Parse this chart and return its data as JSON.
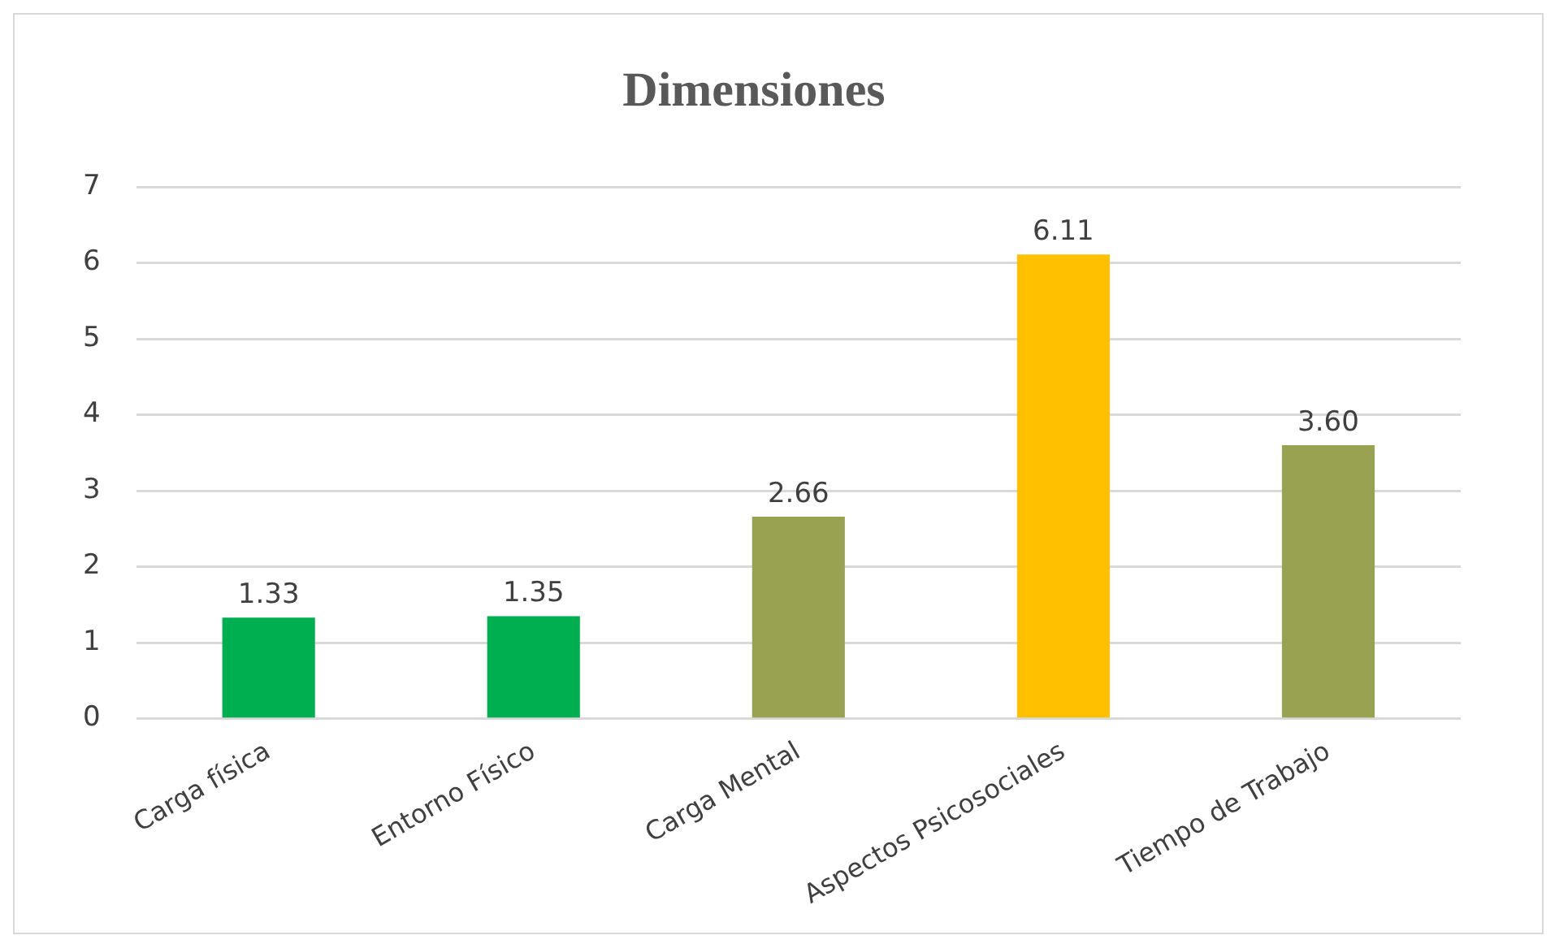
{
  "chart_data": {
    "type": "bar",
    "title": "Dimensiones",
    "categories": [
      "Carga física",
      "Entorno Físico",
      "Carga Mental",
      "Aspectos Psicosociales",
      "Tiempo de Trabajo"
    ],
    "values": [
      1.33,
      1.35,
      2.66,
      6.11,
      3.6
    ],
    "value_labels": [
      "1.33",
      "1.35",
      "2.66",
      "6.11",
      "3.60"
    ],
    "colors": [
      "#00b050",
      "#00b050",
      "#98a250",
      "#ffc000",
      "#98a250"
    ],
    "ylim": [
      0,
      7
    ],
    "yticks": [
      0,
      1,
      2,
      3,
      4,
      5,
      6,
      7
    ],
    "grid": "y"
  }
}
